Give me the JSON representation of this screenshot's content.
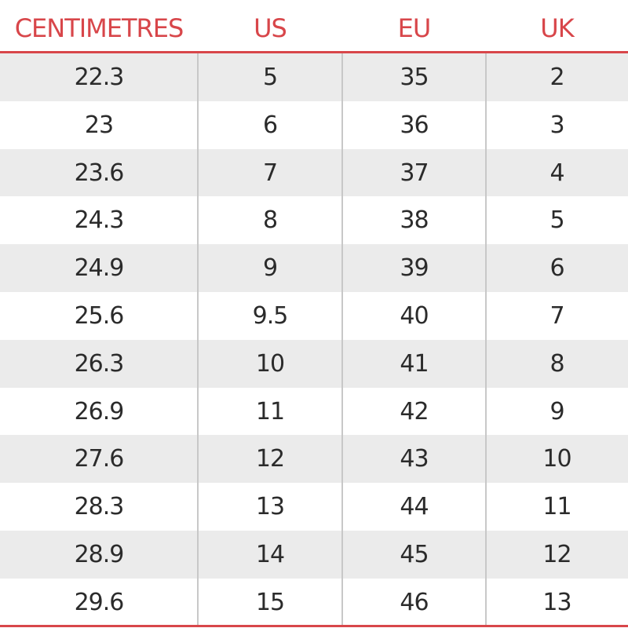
{
  "table": {
    "header": [
      "CENTIMETRES",
      "US",
      "EU",
      "UK"
    ],
    "rows": [
      [
        "22.3",
        "5",
        "35",
        "2"
      ],
      [
        "23",
        "6",
        "36",
        "3"
      ],
      [
        "23.6",
        "7",
        "37",
        "4"
      ],
      [
        "24.3",
        "8",
        "38",
        "5"
      ],
      [
        "24.9",
        "9",
        "39",
        "6"
      ],
      [
        "25.6",
        "9.5",
        "40",
        "7"
      ],
      [
        "26.3",
        "10",
        "41",
        "8"
      ],
      [
        "26.9",
        "11",
        "42",
        "9"
      ],
      [
        "27.6",
        "12",
        "43",
        "10"
      ],
      [
        "28.3",
        "13",
        "44",
        "11"
      ],
      [
        "28.9",
        "14",
        "45",
        "12"
      ],
      [
        "29.6",
        "15",
        "46",
        "13"
      ]
    ]
  }
}
